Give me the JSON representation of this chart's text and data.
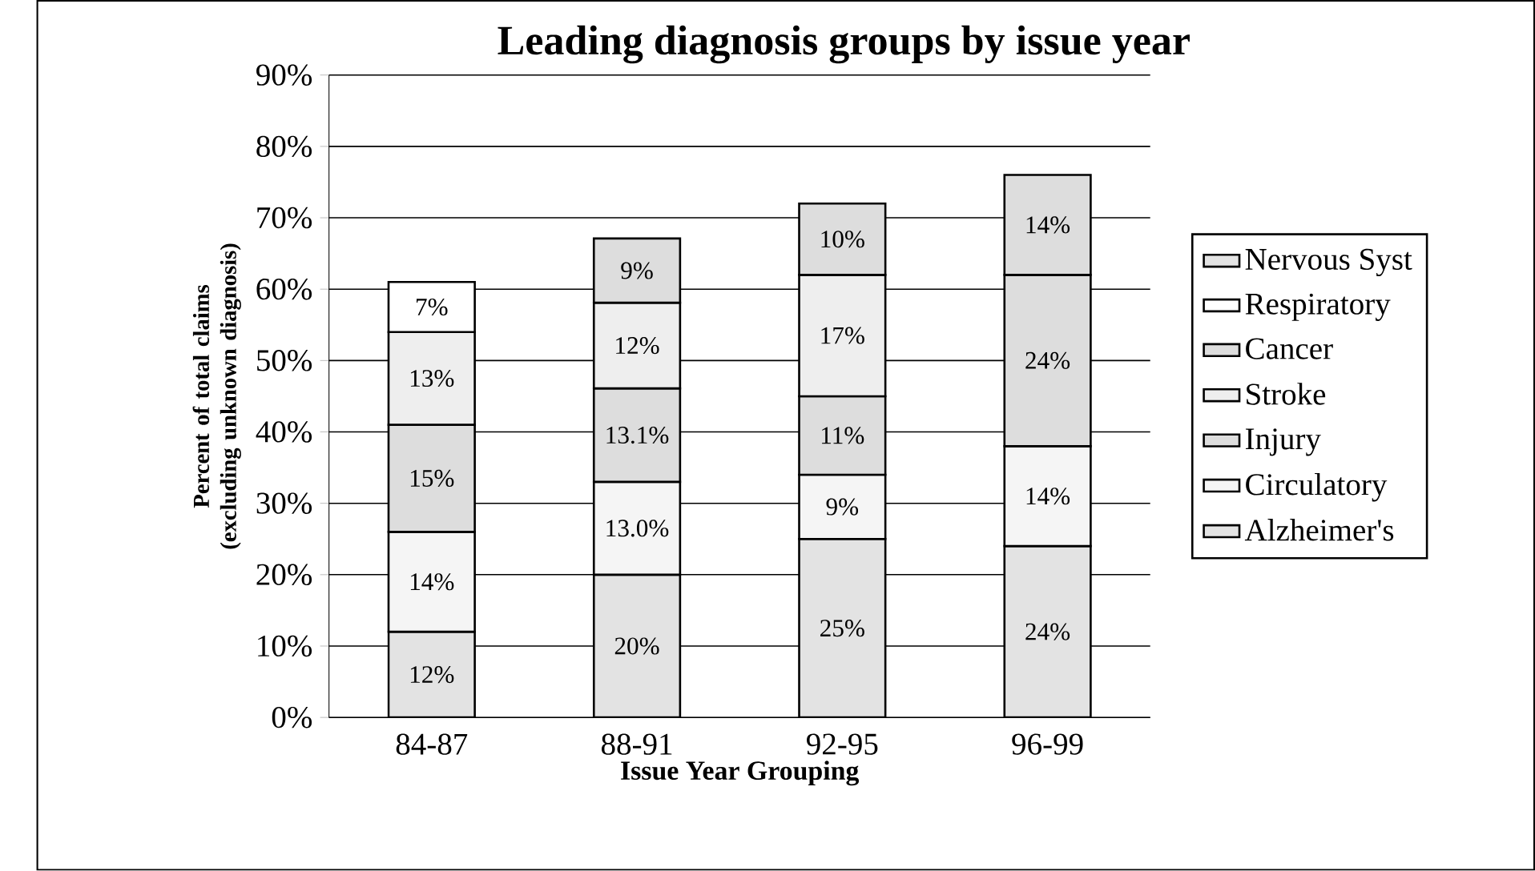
{
  "chart_data": {
    "type": "bar",
    "stacked": true,
    "title": "Leading diagnosis groups by issue year",
    "xlabel": "Issue Year Grouping",
    "ylabel": "Percent of total claims (excluding unknown diagnosis)",
    "categories": [
      "84-87",
      "88-91",
      "92-95",
      "96-99"
    ],
    "ylim": [
      0,
      90
    ],
    "yticks": [
      {
        "value": 0,
        "label": "0%"
      },
      {
        "value": 10,
        "label": "10%"
      },
      {
        "value": 20,
        "label": "20%"
      },
      {
        "value": 30,
        "label": "30%"
      },
      {
        "value": 40,
        "label": "40%"
      },
      {
        "value": 50,
        "label": "50%"
      },
      {
        "value": 60,
        "label": "60%"
      },
      {
        "value": 70,
        "label": "70%"
      },
      {
        "value": 80,
        "label": "80%"
      },
      {
        "value": 90,
        "label": "90%"
      }
    ],
    "grid": "y",
    "legend": "right",
    "series": [
      {
        "name": "Alzheimer's",
        "color": "#e3e3e3",
        "values": [
          12,
          20,
          25,
          24
        ],
        "value_labels": [
          "12%",
          "20%",
          "25%",
          "24%"
        ]
      },
      {
        "name": "Circulatory",
        "color": "#f5f5f5",
        "values": [
          14,
          13.0,
          9,
          14
        ],
        "value_labels": [
          "14%",
          "13.0%",
          "9%",
          "14%"
        ]
      },
      {
        "name": "Injury",
        "color": "#dddddd",
        "values": [
          15,
          13.1,
          11,
          24
        ],
        "value_labels": [
          "15%",
          "13.1%",
          "11%",
          "24%"
        ]
      },
      {
        "name": "Stroke",
        "color": "#eeeeee",
        "values": [
          13,
          12,
          17,
          null
        ],
        "value_labels": [
          "13%",
          "12%",
          "17%",
          null
        ]
      },
      {
        "name": "Cancer",
        "color": "#dddddd",
        "values": [
          null,
          9,
          10,
          14
        ],
        "value_labels": [
          null,
          "9%",
          "10%",
          "14%"
        ]
      },
      {
        "name": "Respiratory",
        "color": "#ffffff",
        "values": [
          7,
          null,
          null,
          null
        ],
        "value_labels": [
          "7%",
          null,
          null,
          null
        ]
      },
      {
        "name": "Nervous Syst",
        "color": "#e3e3e3",
        "values": [
          null,
          null,
          null,
          null
        ]
      }
    ]
  }
}
